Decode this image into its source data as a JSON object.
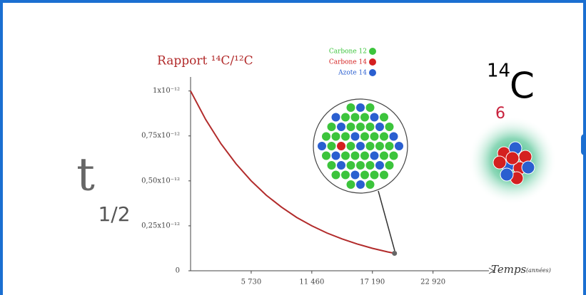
{
  "chart_data": {
    "type": "line",
    "title": "Rapport ¹⁴C/¹²C",
    "x_label": "Temps",
    "x_label_unit": "(années)",
    "x": [
      0,
      1432,
      2865,
      4298,
      5730,
      7162,
      8595,
      10028,
      11460,
      12892,
      14325,
      15758,
      17190,
      18622,
      19280
    ],
    "values": [
      1e-12,
      8.41e-13,
      7.07e-13,
      5.95e-13,
      5e-13,
      4.2e-13,
      3.54e-13,
      2.97e-13,
      2.5e-13,
      2.1e-13,
      1.77e-13,
      1.49e-13,
      1.25e-13,
      1.05e-13,
      9.7e-14
    ],
    "color": "#b22b2b",
    "xlim": [
      0,
      27800
    ],
    "ylim": [
      0,
      1.07e-12
    ],
    "xticks": [
      {
        "value": 5730,
        "label": "5 730"
      },
      {
        "value": 11460,
        "label": "11 460"
      },
      {
        "value": 17190,
        "label": "17 190"
      },
      {
        "value": 22920,
        "label": "22 920"
      }
    ],
    "yticks": [
      {
        "value": 0,
        "label": "0"
      },
      {
        "value": 2.5e-13,
        "label": "0,25x10⁻¹²"
      },
      {
        "value": 5e-13,
        "label": "0,50x10⁻¹²"
      },
      {
        "value": 7.5e-13,
        "label": "0,75x10⁻¹²"
      },
      {
        "value": 1e-12,
        "label": "1x10⁻¹²"
      }
    ],
    "legend": [
      {
        "name": "Carbone 12",
        "color": "#3cc43c"
      },
      {
        "name": "Carbone 14",
        "color": "#d42020"
      },
      {
        "name": "Azote 14",
        "color": "#2a5fd0"
      }
    ]
  },
  "annotations": {
    "half_life": "t",
    "half_life_sub": "1/2",
    "isotope_mass": "14",
    "isotope_symbol": "C",
    "isotope_number": "6"
  }
}
